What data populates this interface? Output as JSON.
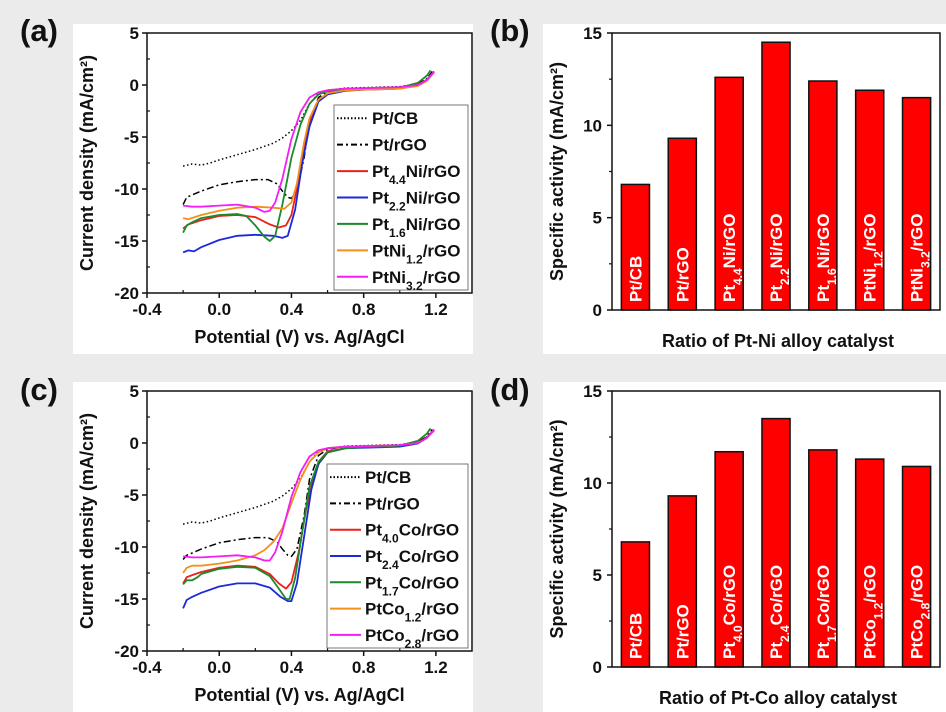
{
  "panels": {
    "a": {
      "letter": "(a)"
    },
    "b": {
      "letter": "(b)"
    },
    "c": {
      "letter": "(c)"
    },
    "d": {
      "letter": "(d)"
    }
  },
  "chart_data": [
    {
      "id": "a",
      "type": "line",
      "title": "",
      "xlabel": "Potential (V) vs. Ag/AgCl",
      "ylabel": "Current density (mA/cm²)",
      "xlim": [
        -0.4,
        1.4
      ],
      "ylim": [
        -20,
        5
      ],
      "xticks": [
        -0.4,
        0.0,
        0.4,
        0.8,
        1.2
      ],
      "xtick_labels": [
        "-0.4",
        "0.0",
        "0.4",
        "0.8",
        "1.2"
      ],
      "yticks": [
        5,
        0,
        -5,
        -10,
        -15,
        -20
      ],
      "ytick_labels": [
        "5",
        "0",
        "-5",
        "-10",
        "-15",
        "-20"
      ],
      "legend_position": "right",
      "series": [
        {
          "name": "Pt/CB",
          "label_main": "Pt/CB",
          "label_sub": "",
          "label_tail": "",
          "color": "#000000",
          "dash": "dotted",
          "x": [
            -0.2,
            -0.15,
            -0.1,
            -0.05,
            0.0,
            0.1,
            0.2,
            0.3,
            0.35,
            0.4,
            0.45,
            0.5,
            0.55,
            0.6,
            0.7,
            0.8,
            0.9,
            1.0,
            1.1,
            1.15,
            1.18
          ],
          "y": [
            -7.8,
            -7.6,
            -7.7,
            -7.5,
            -7.2,
            -6.7,
            -6.2,
            -5.6,
            -5.1,
            -4.4,
            -3.4,
            -1.8,
            -0.8,
            -0.5,
            -0.3,
            -0.25,
            -0.2,
            -0.15,
            0.1,
            0.6,
            1.3
          ]
        },
        {
          "name": "Pt/rGO",
          "label_main": "Pt/rGO",
          "label_sub": "",
          "label_tail": "",
          "color": "#000000",
          "dash": "dashdot",
          "x": [
            -0.2,
            -0.18,
            -0.1,
            0.0,
            0.1,
            0.2,
            0.27,
            0.32,
            0.35,
            0.38,
            0.4,
            0.43,
            0.47,
            0.5,
            0.55,
            0.6,
            0.7,
            0.8,
            0.9,
            1.0,
            1.1,
            1.15,
            1.18
          ],
          "y": [
            -11.5,
            -10.8,
            -10.2,
            -9.6,
            -9.3,
            -9.1,
            -9.1,
            -9.5,
            -10.2,
            -10.8,
            -10.9,
            -10.2,
            -7.0,
            -3.5,
            -1.2,
            -0.6,
            -0.35,
            -0.3,
            -0.25,
            -0.2,
            0.1,
            0.6,
            1.3
          ]
        },
        {
          "name": "Pt4.4Ni/rGO",
          "label_main": "Pt",
          "label_sub": "4.4",
          "label_tail": "Ni/rGO",
          "color": "#e8221f",
          "dash": "solid",
          "x": [
            -0.2,
            -0.17,
            -0.1,
            0.0,
            0.1,
            0.2,
            0.28,
            0.33,
            0.37,
            0.4,
            0.43,
            0.47,
            0.5,
            0.55,
            0.6,
            0.7,
            0.8,
            0.9,
            1.0,
            1.1,
            1.15,
            1.19
          ],
          "y": [
            -13.8,
            -13.4,
            -13.0,
            -12.6,
            -12.5,
            -12.7,
            -13.4,
            -13.7,
            -13.5,
            -12.5,
            -10.0,
            -6.0,
            -3.5,
            -1.5,
            -0.8,
            -0.5,
            -0.4,
            -0.35,
            -0.3,
            0.0,
            0.5,
            1.2
          ]
        },
        {
          "name": "Pt2.2Ni/rGO",
          "label_main": "Pt",
          "label_sub": "2.2",
          "label_tail": "Ni/rGO",
          "color": "#1b2ad8",
          "dash": "solid",
          "x": [
            -0.2,
            -0.17,
            -0.14,
            -0.1,
            0.0,
            0.1,
            0.2,
            0.3,
            0.35,
            0.38,
            0.42,
            0.46,
            0.5,
            0.55,
            0.6,
            0.7,
            0.8,
            0.9,
            1.0,
            1.1,
            1.15,
            1.19
          ],
          "y": [
            -16.1,
            -15.9,
            -16.0,
            -15.6,
            -14.9,
            -14.5,
            -14.4,
            -14.5,
            -14.7,
            -14.5,
            -12.0,
            -7.5,
            -4.0,
            -1.6,
            -0.9,
            -0.55,
            -0.45,
            -0.4,
            -0.35,
            -0.05,
            0.5,
            1.3
          ]
        },
        {
          "name": "Pt1.6Ni/rGO",
          "label_main": "Pt",
          "label_sub": "1.6",
          "label_tail": "Ni/rGO",
          "color": "#1c8a28",
          "dash": "solid",
          "x": [
            -0.2,
            -0.18,
            -0.15,
            -0.1,
            0.0,
            0.1,
            0.15,
            0.2,
            0.25,
            0.28,
            0.31,
            0.35,
            0.4,
            0.45,
            0.5,
            0.55,
            0.6,
            0.7,
            0.8,
            0.9,
            1.0,
            1.1,
            1.15,
            1.17
          ],
          "y": [
            -14.2,
            -13.5,
            -13.2,
            -12.8,
            -12.5,
            -12.4,
            -12.6,
            -13.5,
            -14.6,
            -15.0,
            -14.5,
            -11.5,
            -7.0,
            -3.8,
            -1.8,
            -0.9,
            -0.6,
            -0.45,
            -0.4,
            -0.35,
            -0.25,
            0.2,
            0.9,
            1.4
          ]
        },
        {
          "name": "PtNi1.2/rGO",
          "label_main": "PtNi",
          "label_sub": "1.2",
          "label_tail": "/rGO",
          "color": "#f39019",
          "dash": "solid",
          "x": [
            -0.2,
            -0.17,
            -0.1,
            0.0,
            0.1,
            0.2,
            0.3,
            0.36,
            0.4,
            0.43,
            0.47,
            0.5,
            0.55,
            0.6,
            0.7,
            0.8,
            0.9,
            1.0,
            1.1,
            1.15,
            1.19
          ],
          "y": [
            -12.8,
            -12.9,
            -12.5,
            -12.1,
            -11.8,
            -11.7,
            -11.8,
            -11.9,
            -11.3,
            -9.5,
            -5.5,
            -3.2,
            -1.4,
            -0.8,
            -0.5,
            -0.45,
            -0.4,
            -0.35,
            -0.1,
            0.4,
            1.2
          ]
        },
        {
          "name": "PtNi3.2/rGO",
          "label_main": "PtNi",
          "label_sub": "3.2",
          "label_tail": "/rGO",
          "color": "#f21ef2",
          "dash": "solid",
          "x": [
            -0.2,
            -0.15,
            -0.1,
            0.0,
            0.1,
            0.2,
            0.25,
            0.28,
            0.31,
            0.35,
            0.4,
            0.45,
            0.5,
            0.55,
            0.6,
            0.7,
            0.8,
            0.9,
            1.0,
            1.1,
            1.15,
            1.19
          ],
          "y": [
            -11.6,
            -11.7,
            -11.7,
            -11.6,
            -11.5,
            -11.8,
            -12.2,
            -12.1,
            -11.3,
            -9.0,
            -5.2,
            -2.6,
            -1.2,
            -0.7,
            -0.5,
            -0.35,
            -0.3,
            -0.25,
            -0.2,
            0.0,
            0.5,
            1.3
          ]
        }
      ]
    },
    {
      "id": "b",
      "type": "bar",
      "title": "",
      "xlabel": "Ratio of Pt-Ni alloy catalyst",
      "ylabel": "Specific activity (mA/cm²)",
      "ylim": [
        0,
        15
      ],
      "yticks": [
        0,
        5,
        10,
        15
      ],
      "ytick_labels": [
        "0",
        "5",
        "10",
        "15"
      ],
      "bar_color": "#ff0000",
      "categories": [
        {
          "main": "Pt/CB",
          "sub": "",
          "tail": ""
        },
        {
          "main": "Pt/rGO",
          "sub": "",
          "tail": ""
        },
        {
          "main": "Pt",
          "sub": "4.4",
          "tail": "Ni/rGO"
        },
        {
          "main": "Pt",
          "sub": "2.2",
          "tail": "Ni/rGO"
        },
        {
          "main": "Pt",
          "sub": "1.6",
          "tail": "Ni/rGO"
        },
        {
          "main": "PtNi",
          "sub": "1.2",
          "tail": "/rGO"
        },
        {
          "main": "PtNi",
          "sub": "3.2",
          "tail": "/rGO"
        }
      ],
      "values": [
        6.8,
        9.3,
        12.6,
        14.5,
        12.4,
        11.9,
        11.5
      ]
    },
    {
      "id": "c",
      "type": "line",
      "title": "",
      "xlabel": "Potential (V) vs. Ag/AgCl",
      "ylabel": "Current density (mA/cm²)",
      "xlim": [
        -0.4,
        1.4
      ],
      "ylim": [
        -20,
        5
      ],
      "xticks": [
        -0.4,
        0.0,
        0.4,
        0.8,
        1.2
      ],
      "xtick_labels": [
        "-0.4",
        "0.0",
        "0.4",
        "0.8",
        "1.2"
      ],
      "yticks": [
        5,
        0,
        -5,
        -10,
        -15,
        -20
      ],
      "ytick_labels": [
        "5",
        "0",
        "-5",
        "-10",
        "-15",
        "-20"
      ],
      "legend_position": "right",
      "series": [
        {
          "name": "Pt/CB",
          "label_main": "Pt/CB",
          "label_sub": "",
          "label_tail": "",
          "color": "#000000",
          "dash": "dotted",
          "x": [
            -0.2,
            -0.15,
            -0.1,
            -0.05,
            0.0,
            0.1,
            0.2,
            0.3,
            0.35,
            0.4,
            0.45,
            0.5,
            0.55,
            0.6,
            0.7,
            0.8,
            0.9,
            1.0,
            1.1,
            1.15,
            1.18
          ],
          "y": [
            -7.8,
            -7.6,
            -7.7,
            -7.5,
            -7.2,
            -6.7,
            -6.2,
            -5.6,
            -5.1,
            -4.4,
            -3.4,
            -1.8,
            -0.8,
            -0.5,
            -0.3,
            -0.25,
            -0.2,
            -0.15,
            0.1,
            0.6,
            1.3
          ]
        },
        {
          "name": "Pt/rGO",
          "label_main": "Pt/rGO",
          "label_sub": "",
          "label_tail": "",
          "color": "#000000",
          "dash": "dashdot",
          "x": [
            -0.2,
            -0.18,
            -0.1,
            0.0,
            0.1,
            0.2,
            0.27,
            0.32,
            0.35,
            0.38,
            0.4,
            0.43,
            0.47,
            0.5,
            0.55,
            0.6,
            0.7,
            0.8,
            0.9,
            1.0,
            1.1,
            1.15,
            1.18
          ],
          "y": [
            -11.2,
            -10.8,
            -10.2,
            -9.6,
            -9.3,
            -9.1,
            -9.1,
            -9.5,
            -10.2,
            -10.8,
            -10.9,
            -10.2,
            -7.0,
            -3.5,
            -1.2,
            -0.6,
            -0.35,
            -0.3,
            -0.25,
            -0.2,
            0.1,
            0.6,
            1.3
          ]
        },
        {
          "name": "Pt4.0Co/rGO",
          "label_main": "Pt",
          "label_sub": "4.0",
          "label_tail": "Co/rGO",
          "color": "#e8221f",
          "dash": "solid",
          "x": [
            -0.2,
            -0.18,
            -0.15,
            -0.1,
            0.0,
            0.1,
            0.2,
            0.28,
            0.33,
            0.37,
            0.4,
            0.44,
            0.48,
            0.52,
            0.56,
            0.6,
            0.7,
            0.8,
            0.9,
            1.0,
            1.1,
            1.15,
            1.19
          ],
          "y": [
            -13.5,
            -12.9,
            -12.7,
            -12.4,
            -12.0,
            -11.8,
            -11.9,
            -12.6,
            -13.5,
            -14.0,
            -13.4,
            -10.5,
            -6.5,
            -3.5,
            -1.6,
            -0.8,
            -0.5,
            -0.4,
            -0.35,
            -0.3,
            0.0,
            0.5,
            1.2
          ]
        },
        {
          "name": "Pt2.4Co/rGO",
          "label_main": "Pt",
          "label_sub": "2.4",
          "label_tail": "Co/rGO",
          "color": "#1b2ad8",
          "dash": "solid",
          "x": [
            -0.2,
            -0.18,
            -0.15,
            -0.1,
            0.0,
            0.1,
            0.2,
            0.28,
            0.34,
            0.38,
            0.4,
            0.43,
            0.47,
            0.51,
            0.55,
            0.6,
            0.7,
            0.8,
            0.9,
            1.0,
            1.1,
            1.15,
            1.19
          ],
          "y": [
            -15.9,
            -15.1,
            -14.8,
            -14.4,
            -13.8,
            -13.5,
            -13.5,
            -13.9,
            -14.8,
            -15.2,
            -15.2,
            -13.5,
            -9.0,
            -4.5,
            -2.0,
            -0.9,
            -0.5,
            -0.45,
            -0.4,
            -0.35,
            -0.05,
            0.5,
            1.3
          ]
        },
        {
          "name": "Pt1.7Co/rGO",
          "label_main": "Pt",
          "label_sub": "1.7",
          "label_tail": "Co/rGO",
          "color": "#1c8a28",
          "dash": "solid",
          "x": [
            -0.2,
            -0.18,
            -0.15,
            -0.12,
            -0.1,
            0.0,
            0.1,
            0.2,
            0.28,
            0.33,
            0.37,
            0.39,
            0.42,
            0.46,
            0.5,
            0.55,
            0.6,
            0.7,
            0.8,
            0.9,
            1.0,
            1.1,
            1.15,
            1.17
          ],
          "y": [
            -13.6,
            -13.2,
            -13.2,
            -12.9,
            -12.6,
            -12.1,
            -11.9,
            -12.0,
            -12.8,
            -14.0,
            -15.0,
            -15.0,
            -13.0,
            -8.5,
            -4.2,
            -1.8,
            -0.9,
            -0.5,
            -0.4,
            -0.35,
            -0.25,
            0.2,
            0.9,
            1.4
          ]
        },
        {
          "name": "PtCo1.2/rGO",
          "label_main": "PtCo",
          "label_sub": "1.2",
          "label_tail": "/rGO",
          "color": "#f39019",
          "dash": "solid",
          "x": [
            -0.2,
            -0.18,
            -0.15,
            -0.1,
            0.0,
            0.1,
            0.2,
            0.25,
            0.3,
            0.35,
            0.4,
            0.45,
            0.5,
            0.55,
            0.6,
            0.7,
            0.8,
            0.9,
            1.0,
            1.1,
            1.15,
            1.19
          ],
          "y": [
            -12.5,
            -12.0,
            -11.8,
            -11.8,
            -11.6,
            -11.3,
            -10.8,
            -10.3,
            -9.5,
            -8.2,
            -5.8,
            -3.5,
            -1.8,
            -0.9,
            -0.5,
            -0.35,
            -0.3,
            -0.25,
            -0.2,
            0.0,
            0.5,
            1.3
          ]
        },
        {
          "name": "PtCo2.8/rGO",
          "label_main": "PtCo",
          "label_sub": "2.8",
          "label_tail": "/rGO",
          "color": "#f21ef2",
          "dash": "solid",
          "x": [
            -0.2,
            -0.15,
            -0.1,
            0.0,
            0.1,
            0.2,
            0.25,
            0.28,
            0.31,
            0.35,
            0.4,
            0.45,
            0.5,
            0.55,
            0.6,
            0.7,
            0.8,
            0.9,
            1.0,
            1.1,
            1.15,
            1.19
          ],
          "y": [
            -10.9,
            -11.0,
            -11.0,
            -10.9,
            -10.8,
            -11.0,
            -11.3,
            -11.3,
            -10.5,
            -8.5,
            -5.2,
            -2.8,
            -1.3,
            -0.7,
            -0.5,
            -0.35,
            -0.3,
            -0.25,
            -0.2,
            0.0,
            0.5,
            1.3
          ]
        }
      ]
    },
    {
      "id": "d",
      "type": "bar",
      "title": "",
      "xlabel": "Ratio of Pt-Co alloy catalyst",
      "ylabel": "Specific activity (mA/cm²)",
      "ylim": [
        0,
        15
      ],
      "yticks": [
        0,
        5,
        10,
        15
      ],
      "ytick_labels": [
        "0",
        "5",
        "10",
        "15"
      ],
      "bar_color": "#ff0000",
      "categories": [
        {
          "main": "Pt/CB",
          "sub": "",
          "tail": ""
        },
        {
          "main": "Pt/rGO",
          "sub": "",
          "tail": ""
        },
        {
          "main": "Pt",
          "sub": "4.0",
          "tail": "Co/rGO"
        },
        {
          "main": "Pt",
          "sub": "2.4",
          "tail": "Co/rGO"
        },
        {
          "main": "Pt",
          "sub": "1.7",
          "tail": "Co/rGO"
        },
        {
          "main": "PtCo",
          "sub": "1.2",
          "tail": "/rGO"
        },
        {
          "main": "PtCo",
          "sub": "2.8",
          "tail": "/rGO"
        }
      ],
      "values": [
        6.8,
        9.3,
        11.7,
        13.5,
        11.8,
        11.3,
        10.9
      ]
    }
  ]
}
